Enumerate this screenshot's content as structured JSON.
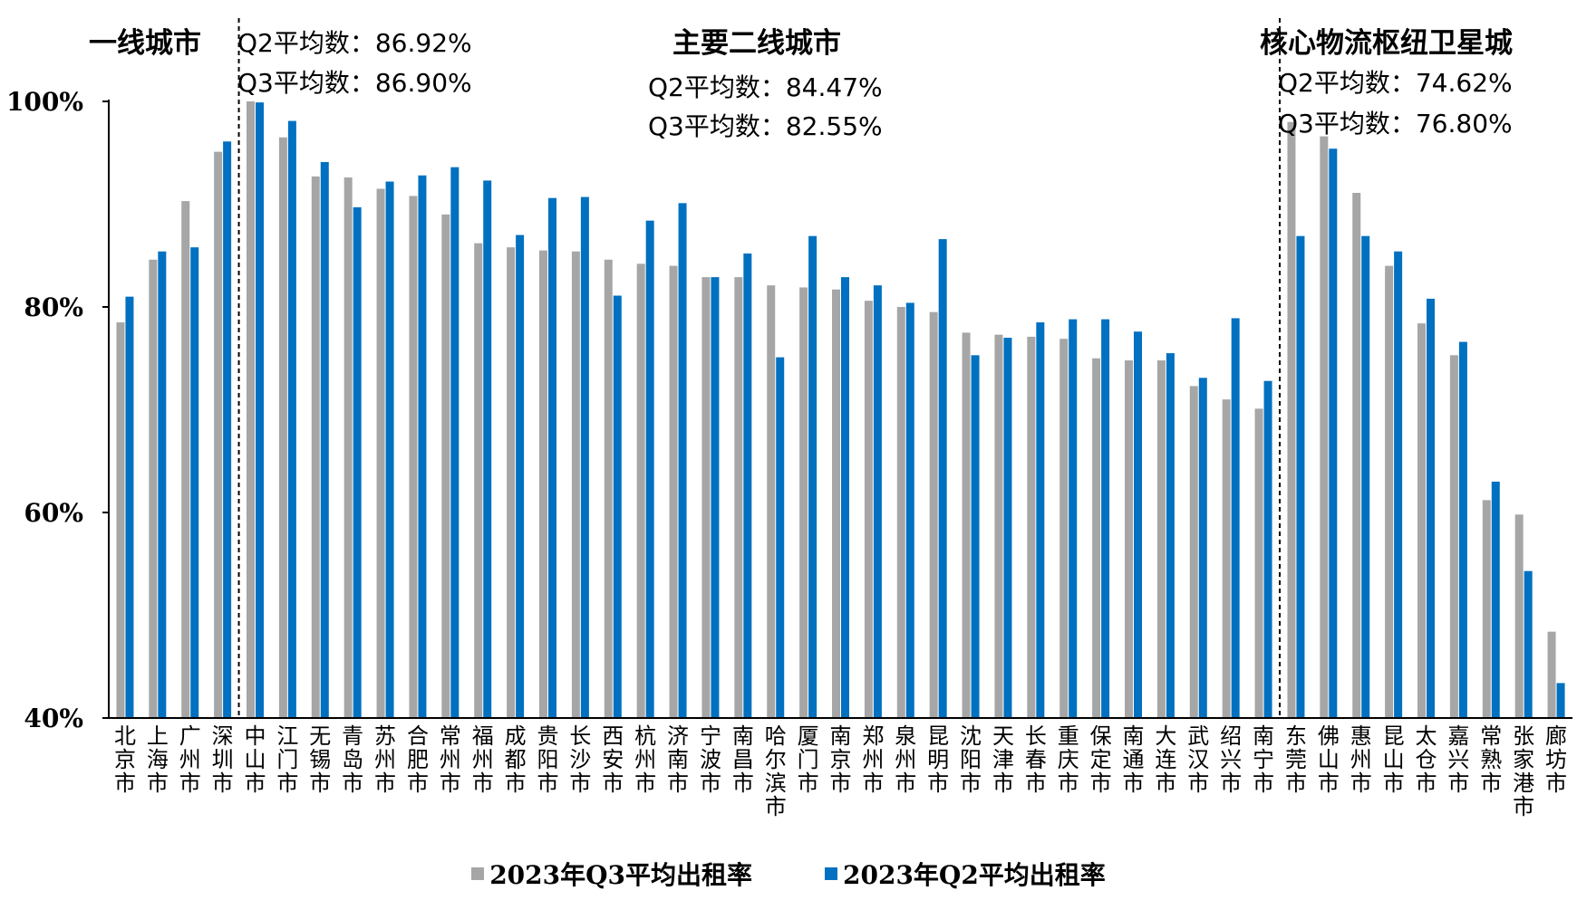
{
  "chart_data": {
    "type": "bar",
    "title": "",
    "xlabel": "",
    "ylabel": "",
    "ylim": [
      40,
      100
    ],
    "yticks": [
      40,
      60,
      80,
      100
    ],
    "ytick_labels": [
      "40%",
      "60%",
      "80%",
      "100%"
    ],
    "categories": [
      "北京市",
      "上海市",
      "广州市",
      "深圳市",
      "中山市",
      "江门市",
      "无锡市",
      "青岛市",
      "苏州市",
      "合肥市",
      "常州市",
      "福州市",
      "成都市",
      "贵阳市",
      "长沙市",
      "西安市",
      "杭州市",
      "济南市",
      "宁波市",
      "南昌市",
      "哈尔滨市",
      "厦门市",
      "南京市",
      "郑州市",
      "泉州市",
      "昆明市",
      "沈阳市",
      "天津市",
      "长春市",
      "重庆市",
      "保定市",
      "南通市",
      "大连市",
      "武汉市",
      "绍兴市",
      "南宁市",
      "东莞市",
      "佛山市",
      "惠州市",
      "昆山市",
      "太仓市",
      "嘉兴市",
      "常熟市",
      "张家港市",
      "廊坊市"
    ],
    "series": [
      {
        "name": "2023年Q3平均出租率",
        "color": "#a6a6a6",
        "values": [
          78.5,
          84.6,
          90.3,
          95.1,
          100.0,
          96.5,
          92.7,
          92.6,
          91.5,
          90.8,
          89.0,
          86.2,
          85.8,
          85.5,
          85.4,
          84.6,
          84.2,
          84.0,
          82.9,
          82.9,
          82.1,
          81.9,
          81.7,
          80.6,
          80.0,
          79.5,
          77.5,
          77.3,
          77.1,
          76.9,
          75.0,
          74.8,
          74.8,
          72.3,
          71.0,
          70.1,
          98.0,
          96.6,
          91.1,
          84.0,
          78.4,
          75.3,
          61.2,
          59.8,
          48.4
        ]
      },
      {
        "name": "2023年Q2平均出租率",
        "color": "#0070c0",
        "values": [
          81.0,
          85.4,
          85.8,
          96.1,
          99.9,
          98.1,
          94.1,
          89.7,
          92.2,
          92.8,
          93.6,
          92.3,
          87.0,
          90.6,
          90.7,
          81.1,
          88.4,
          90.1,
          82.9,
          85.2,
          75.1,
          86.9,
          82.9,
          82.1,
          80.4,
          86.6,
          75.3,
          77.0,
          78.5,
          78.8,
          78.8,
          77.6,
          75.5,
          73.1,
          78.9,
          72.8,
          86.9,
          95.4,
          86.9,
          85.4,
          80.8,
          76.6,
          63.0,
          54.3,
          43.4
        ]
      }
    ],
    "groups": [
      {
        "title": "一线城市",
        "q2_label": "Q2平均数：",
        "q2_value": "86.92%",
        "q3_label": "Q3平均数：",
        "q3_value": "86.90%"
      },
      {
        "title": "主要二线城市",
        "q2_label": "Q2平均数：",
        "q2_value": "84.47%",
        "q3_label": "Q3平均数：",
        "q3_value": "82.55%"
      },
      {
        "title": "核心物流枢纽卫星城",
        "q2_label": "Q2平均数：",
        "q2_value": "74.62%",
        "q3_label": "Q3平均数：",
        "q3_value": "76.80%"
      }
    ],
    "group_dividers_after_index": [
      3,
      35
    ],
    "legend_position": "bottom",
    "grid": false
  }
}
